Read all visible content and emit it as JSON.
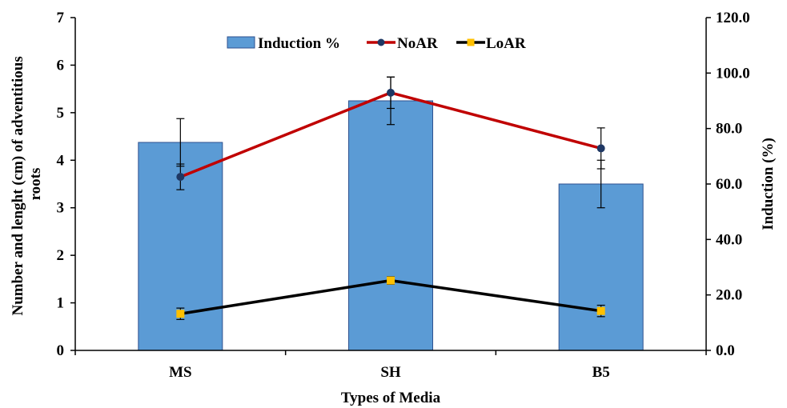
{
  "chart_data": {
    "type": "bar",
    "categories": [
      "MS",
      "SH",
      "B5"
    ],
    "xlabel": "Types of Media",
    "ylabel_lines": [
      "Number and lenght (cm) of adventitious",
      "roots"
    ],
    "ylabel_right": "Induction  (%)",
    "ylim": [
      0,
      7
    ],
    "ylim_right": [
      0,
      120
    ],
    "yticks": [
      "0",
      "1",
      "2",
      "3",
      "4",
      "5",
      "6",
      "7"
    ],
    "yticks_right": [
      "0.0",
      "20.0",
      "40.0",
      "60.0",
      "80.0",
      "100.0",
      "120.0"
    ],
    "bar_series": {
      "name": "Induction %",
      "axis": "right",
      "values": [
        75.0,
        90.0,
        60.0
      ],
      "errors": [
        0,
        0,
        0
      ],
      "color": "#5B9BD5",
      "edge_color": "#2F528F"
    },
    "line_series": [
      {
        "name": "NoAR",
        "axis": "left",
        "values": [
          3.65,
          5.42,
          4.25
        ],
        "errors": [
          0.27,
          0.33,
          0.43
        ],
        "color": "#C00000",
        "marker_color": "#1F3864"
      },
      {
        "name": "LoAR",
        "axis": "left",
        "values": [
          0.77,
          1.47,
          0.83
        ],
        "errors": [
          0.12,
          0.08,
          0.12
        ],
        "color": "#000000",
        "marker_color": "#FFC000"
      }
    ],
    "bar_top_error_left": [
      0.5,
      0.5,
      0.5
    ],
    "legend_position": "top-center",
    "grid": false
  }
}
